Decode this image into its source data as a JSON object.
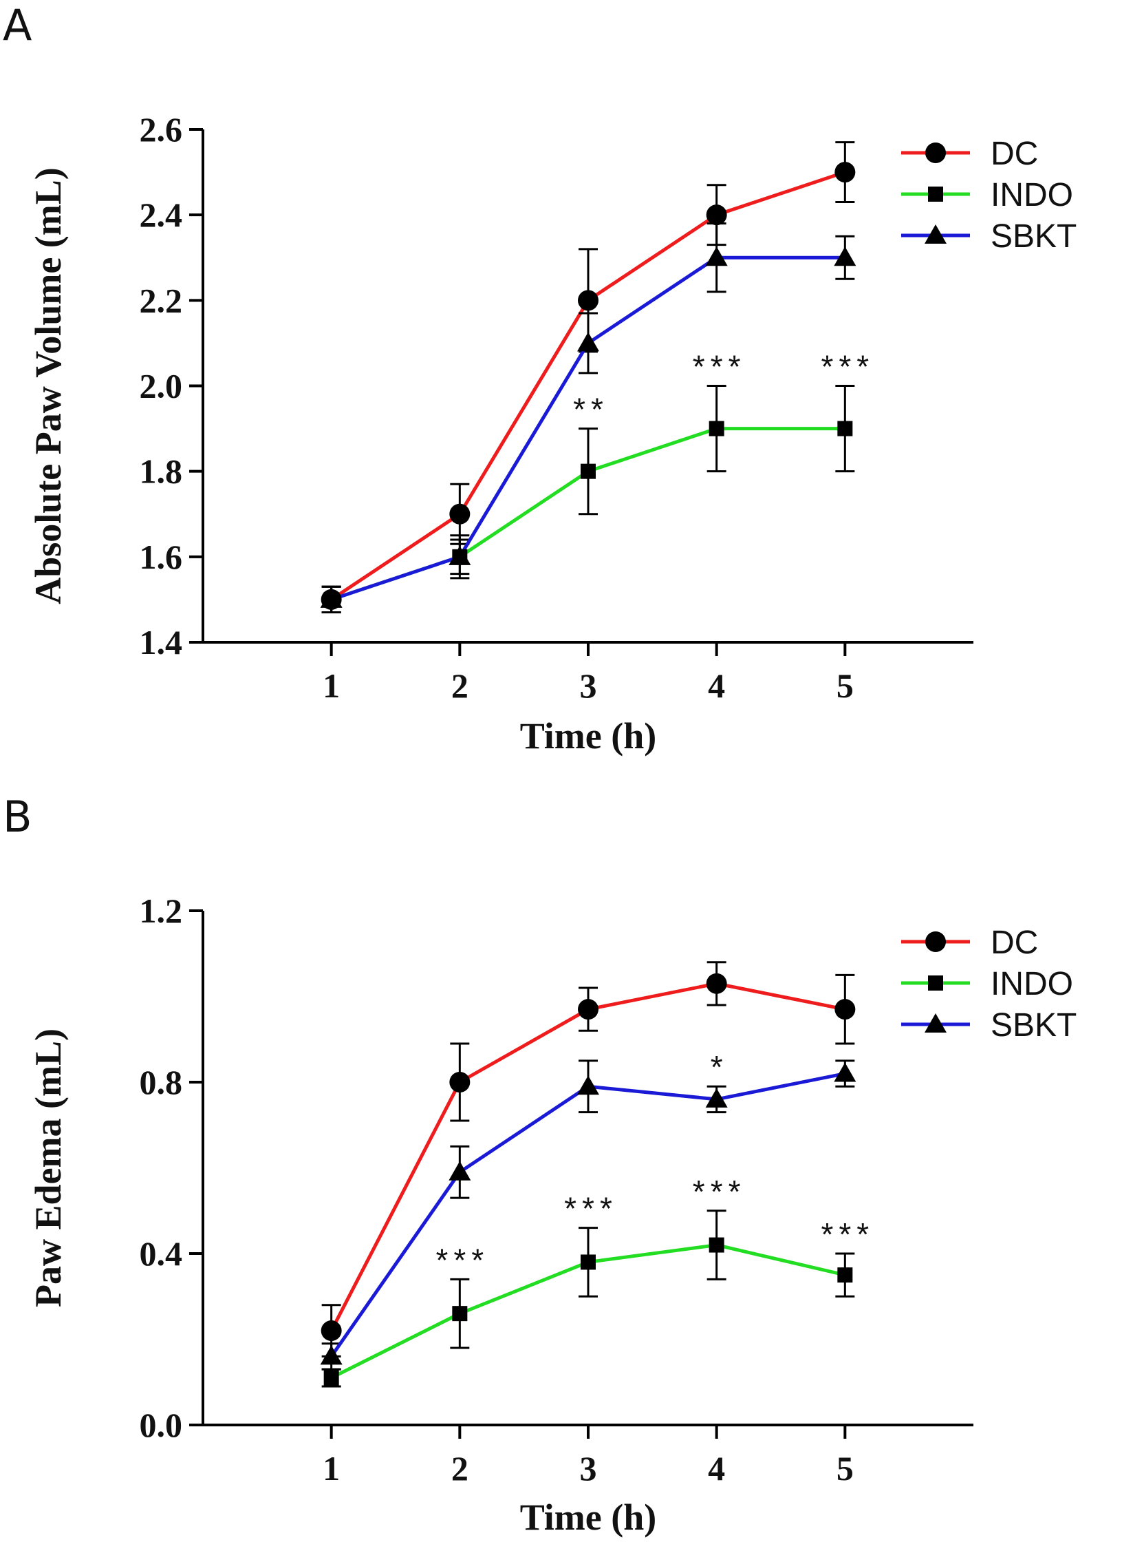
{
  "figure": {
    "panels": [
      "A",
      "B"
    ]
  },
  "chart_data": [
    {
      "type": "line",
      "panel": "A",
      "xlabel": "Time (h)",
      "ylabel": "Absolute Paw Volume (mL)",
      "x": [
        1,
        2,
        3,
        4,
        5
      ],
      "xlim": [
        0,
        6
      ],
      "ylim": [
        1.4,
        2.6
      ],
      "yticks": [
        1.4,
        1.6,
        1.8,
        2.0,
        2.2,
        2.4,
        2.6
      ],
      "ytick_labels": [
        "1.4",
        "1.6",
        "1.8",
        "2.0",
        "2.2",
        "2.4",
        "2.6"
      ],
      "xtick_labels": [
        "1",
        "2",
        "3",
        "4",
        "5"
      ],
      "legend_position": "top-right",
      "series": [
        {
          "name": "DC",
          "color": "#ee1c1c",
          "marker": "circle",
          "values": [
            1.5,
            1.7,
            2.2,
            2.4,
            2.5
          ],
          "errors": [
            0.03,
            0.07,
            0.12,
            0.07,
            0.07
          ]
        },
        {
          "name": "INDO",
          "color": "#22dd22",
          "marker": "square",
          "values": [
            1.5,
            1.6,
            1.8,
            1.9,
            1.9
          ],
          "errors": [
            0.03,
            0.04,
            0.1,
            0.1,
            0.1
          ]
        },
        {
          "name": "SBKT",
          "color": "#1a1ad6",
          "marker": "triangle",
          "values": [
            1.5,
            1.6,
            2.1,
            2.3,
            2.3
          ],
          "errors": [
            0.03,
            0.05,
            0.07,
            0.08,
            0.05
          ]
        }
      ],
      "annotations": [
        {
          "x": 3,
          "y": 1.9,
          "text": "**"
        },
        {
          "x": 4,
          "y": 2.0,
          "text": "***"
        },
        {
          "x": 5,
          "y": 2.0,
          "text": "***"
        }
      ]
    },
    {
      "type": "line",
      "panel": "B",
      "xlabel": "Time (h)",
      "ylabel": "Paw Edema (mL)",
      "x": [
        1,
        2,
        3,
        4,
        5
      ],
      "xlim": [
        0,
        6
      ],
      "ylim": [
        0.0,
        1.2
      ],
      "yticks": [
        0.0,
        0.4,
        0.8,
        1.2
      ],
      "ytick_labels": [
        "0.0",
        "0.4",
        "0.8",
        "1.2"
      ],
      "xtick_labels": [
        "1",
        "2",
        "3",
        "4",
        "5"
      ],
      "legend_position": "top-right",
      "series": [
        {
          "name": "DC",
          "color": "#ee1c1c",
          "marker": "circle",
          "values": [
            0.22,
            0.8,
            0.97,
            1.03,
            0.97
          ],
          "errors": [
            0.06,
            0.09,
            0.05,
            0.05,
            0.08
          ]
        },
        {
          "name": "INDO",
          "color": "#22dd22",
          "marker": "square",
          "values": [
            0.11,
            0.26,
            0.38,
            0.42,
            0.35
          ],
          "errors": [
            0.02,
            0.08,
            0.08,
            0.08,
            0.05
          ]
        },
        {
          "name": "SBKT",
          "color": "#1a1ad6",
          "marker": "triangle",
          "values": [
            0.16,
            0.59,
            0.79,
            0.76,
            0.82
          ],
          "errors": [
            0.03,
            0.06,
            0.06,
            0.03,
            0.03
          ]
        }
      ],
      "annotations": [
        {
          "x": 2,
          "y": 0.34,
          "text": "***"
        },
        {
          "x": 3,
          "y": 0.46,
          "text": "***"
        },
        {
          "x": 4,
          "y": 0.5,
          "text": "***"
        },
        {
          "x": 5,
          "y": 0.4,
          "text": "***"
        },
        {
          "x": 4,
          "y": 0.79,
          "text": "*"
        }
      ]
    }
  ]
}
